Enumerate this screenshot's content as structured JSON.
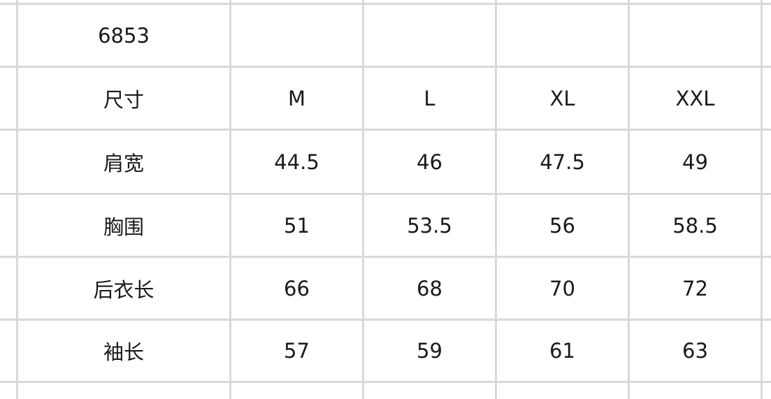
{
  "table": {
    "title": "6853",
    "header": [
      "尺寸",
      "M",
      "L",
      "XL",
      "XXL"
    ],
    "rows": [
      [
        "肩宽",
        "44.5",
        "46",
        "47.5",
        "49"
      ],
      [
        "胸围",
        "51",
        "53.5",
        "56",
        "58.5"
      ],
      [
        "后衣长",
        "66",
        "68",
        "70",
        "72"
      ],
      [
        "袖长",
        "57",
        "59",
        "61",
        "63"
      ]
    ],
    "grid_color": "#d9d9d9"
  }
}
